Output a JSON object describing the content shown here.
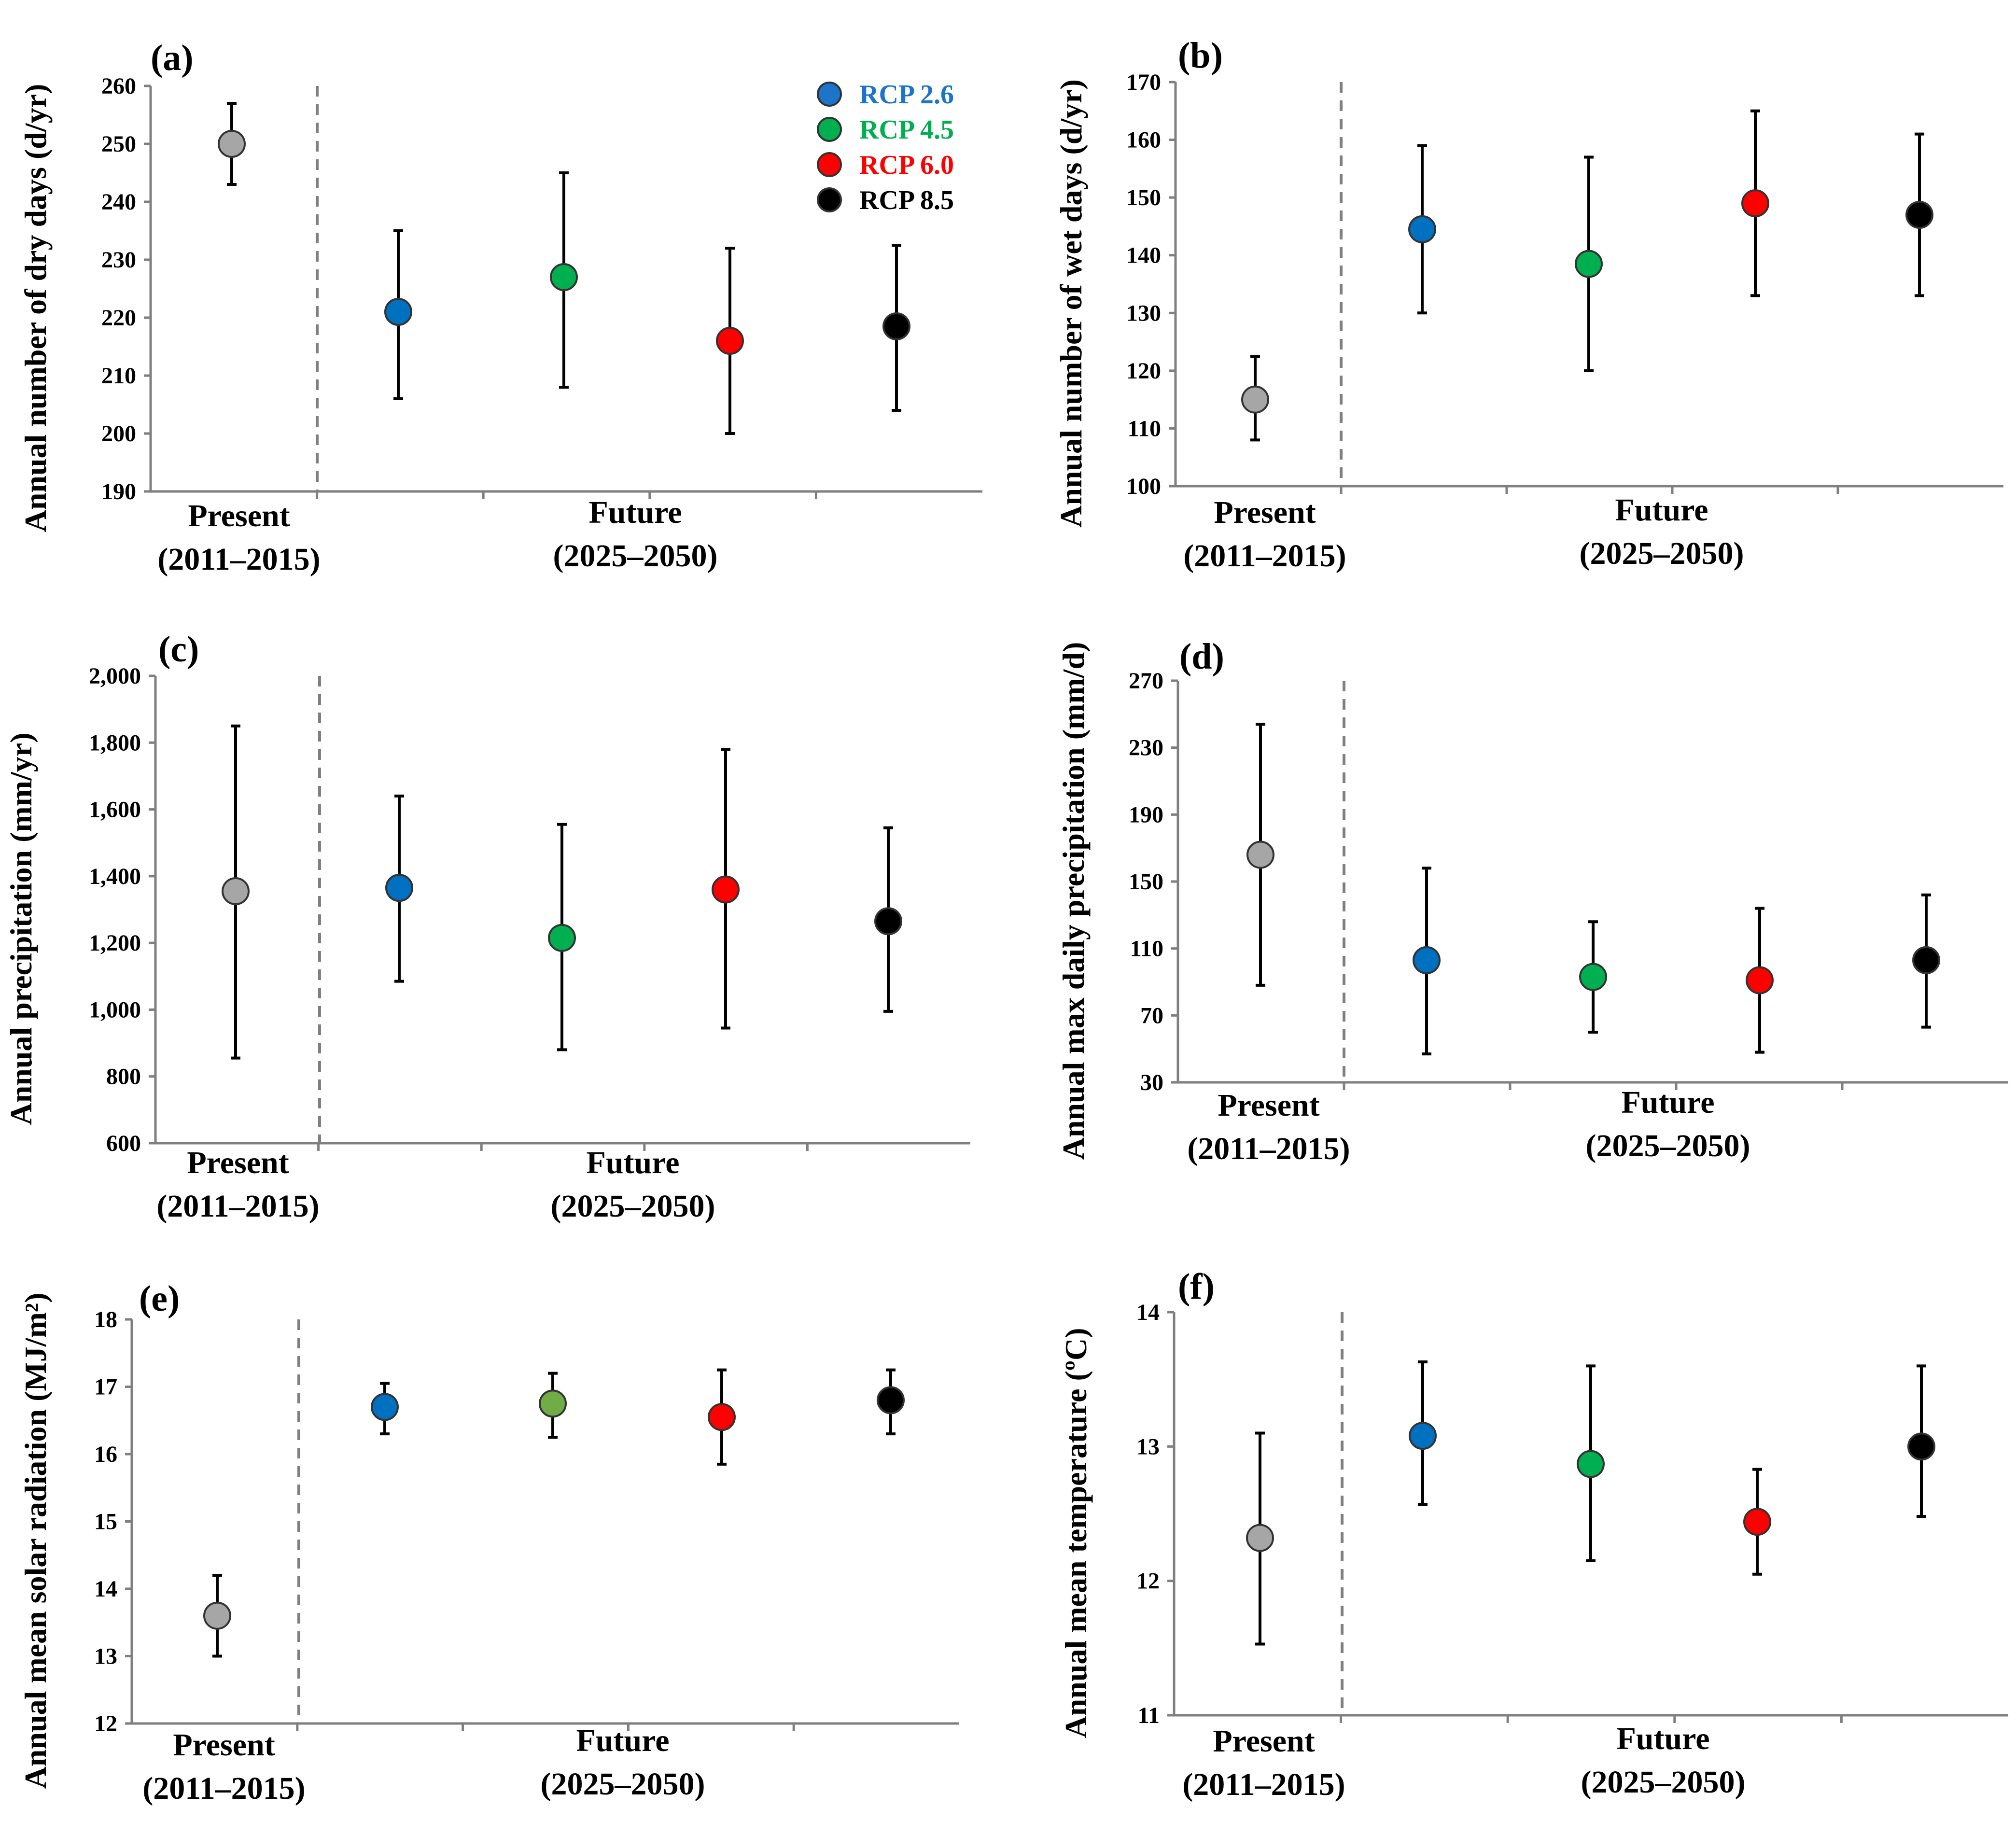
{
  "colors": {
    "present": "#a6a6a6",
    "rcp26": "#0070c0",
    "rcp45": "#00b050",
    "rcp45_alt": "#70ad47",
    "rcp60": "#ff0000",
    "rcp85": "#000000"
  },
  "legend": [
    {
      "label": "RCP 2.6",
      "color": "#1c75c9"
    },
    {
      "label": "RCP 4.5",
      "color": "#00b050"
    },
    {
      "label": "RCP 6.0",
      "color": "#ff0000"
    },
    {
      "label": "RCP 8.5",
      "color": "#000000"
    }
  ],
  "chart_data": [
    {
      "id": "a",
      "type": "scatter",
      "panel_label": "(a)",
      "ylabel": "Annual number of  dry days (d/yr)",
      "ylim": [
        190,
        260
      ],
      "yticks": [
        "190",
        "200",
        "210",
        "220",
        "230",
        "240",
        "250",
        "260"
      ],
      "categories": [
        {
          "line1": "Present",
          "line2": "(2011–2015)"
        },
        {
          "line1": "Future",
          "line2": "(2025–2050)"
        }
      ],
      "series": [
        {
          "name": "Present",
          "color": "#a6a6a6",
          "value": 250,
          "low": 243,
          "high": 257
        },
        {
          "name": "RCP 2.6",
          "color": "#0070c0",
          "value": 221,
          "low": 206,
          "high": 235
        },
        {
          "name": "RCP 4.5",
          "color": "#00b050",
          "value": 227,
          "low": 208,
          "high": 245
        },
        {
          "name": "RCP 6.0",
          "color": "#ff0000",
          "value": 216,
          "low": 200,
          "high": 232
        },
        {
          "name": "RCP 8.5",
          "color": "#000000",
          "value": 218.5,
          "low": 204,
          "high": 232.5
        }
      ]
    },
    {
      "id": "b",
      "type": "scatter",
      "panel_label": "(b)",
      "ylabel": "Annual number of  wet days (d/yr)",
      "ylim": [
        100,
        170
      ],
      "yticks": [
        "100",
        "110",
        "120",
        "130",
        "140",
        "150",
        "160",
        "170"
      ],
      "categories": [
        {
          "line1": "Present",
          "line2": "(2011–2015)"
        },
        {
          "line1": "Future",
          "line2": "(2025–2050)"
        }
      ],
      "series": [
        {
          "name": "Present",
          "color": "#a6a6a6",
          "value": 115,
          "low": 108,
          "high": 122.5
        },
        {
          "name": "RCP 2.6",
          "color": "#0070c0",
          "value": 144.5,
          "low": 130,
          "high": 159
        },
        {
          "name": "RCP 4.5",
          "color": "#00b050",
          "value": 138.5,
          "low": 120,
          "high": 157
        },
        {
          "name": "RCP 6.0",
          "color": "#ff0000",
          "value": 149,
          "low": 133,
          "high": 165
        },
        {
          "name": "RCP 8.5",
          "color": "#000000",
          "value": 147,
          "low": 133,
          "high": 161
        }
      ]
    },
    {
      "id": "c",
      "type": "scatter",
      "panel_label": "(c)",
      "ylabel": "Annual precipitation  (mm/yr)",
      "ylim": [
        600,
        2000
      ],
      "yticks": [
        "600",
        "800",
        "1,000",
        "1,200",
        "1,400",
        "1,600",
        "1,800",
        "2,000"
      ],
      "categories": [
        {
          "line1": "Present",
          "line2": "(2011–2015)"
        },
        {
          "line1": "Future",
          "line2": "(2025–2050)"
        }
      ],
      "series": [
        {
          "name": "Present",
          "color": "#a6a6a6",
          "value": 1355,
          "low": 855,
          "high": 1850
        },
        {
          "name": "RCP 2.6",
          "color": "#0070c0",
          "value": 1365,
          "low": 1085,
          "high": 1640
        },
        {
          "name": "RCP 4.5",
          "color": "#00b050",
          "value": 1215,
          "low": 880,
          "high": 1555
        },
        {
          "name": "RCP 6.0",
          "color": "#ff0000",
          "value": 1360,
          "low": 945,
          "high": 1780
        },
        {
          "name": "RCP 8.5",
          "color": "#000000",
          "value": 1265,
          "low": 995,
          "high": 1545
        }
      ]
    },
    {
      "id": "d",
      "type": "scatter",
      "panel_label": "(d)",
      "ylabel": "Annual max daily precipitation (mm/d)",
      "ylim": [
        30,
        270
      ],
      "yticks": [
        "30",
        "70",
        "110",
        "150",
        "190",
        "230",
        "270"
      ],
      "categories": [
        {
          "line1": "Present",
          "line2": "(2011–2015)"
        },
        {
          "line1": "Future",
          "line2": "(2025–2050)"
        }
      ],
      "series": [
        {
          "name": "Present",
          "color": "#a6a6a6",
          "value": 166,
          "low": 88,
          "high": 244
        },
        {
          "name": "RCP 2.6",
          "color": "#0070c0",
          "value": 103,
          "low": 47,
          "high": 158
        },
        {
          "name": "RCP 4.5",
          "color": "#00b050",
          "value": 93,
          "low": 60,
          "high": 126
        },
        {
          "name": "RCP 6.0",
          "color": "#ff0000",
          "value": 91,
          "low": 48,
          "high": 134
        },
        {
          "name": "RCP 8.5",
          "color": "#000000",
          "value": 103,
          "low": 63,
          "high": 142
        }
      ]
    },
    {
      "id": "e",
      "type": "scatter",
      "panel_label": "(e)",
      "ylabel": "Annual mean solar radiation (MJ/m²)",
      "ylim": [
        12,
        18
      ],
      "yticks": [
        "12",
        "13",
        "14",
        "15",
        "16",
        "17",
        "18"
      ],
      "categories": [
        {
          "line1": "Present",
          "line2": "(2011–2015)"
        },
        {
          "line1": "Future",
          "line2": "(2025–2050)"
        }
      ],
      "series": [
        {
          "name": "Present",
          "color": "#a6a6a6",
          "value": 13.6,
          "low": 13.0,
          "high": 14.2
        },
        {
          "name": "RCP 2.6",
          "color": "#0070c0",
          "value": 16.7,
          "low": 16.3,
          "high": 17.05
        },
        {
          "name": "RCP 4.5",
          "color": "#70ad47",
          "value": 16.75,
          "low": 16.25,
          "high": 17.2
        },
        {
          "name": "RCP 6.0",
          "color": "#ff0000",
          "value": 16.55,
          "low": 15.85,
          "high": 17.25
        },
        {
          "name": "RCP 8.5",
          "color": "#000000",
          "value": 16.8,
          "low": 16.3,
          "high": 17.25
        }
      ]
    },
    {
      "id": "f",
      "type": "scatter",
      "panel_label": "(f)",
      "ylabel": "Annual mean temperature (ºC)",
      "ylim": [
        11,
        14
      ],
      "yticks": [
        "11",
        "12",
        "13",
        "14"
      ],
      "categories": [
        {
          "line1": "Present",
          "line2": "(2011–2015)"
        },
        {
          "line1": "Future",
          "line2": "(2025–2050)"
        }
      ],
      "series": [
        {
          "name": "Present",
          "color": "#a6a6a6",
          "value": 12.32,
          "low": 11.53,
          "high": 13.1
        },
        {
          "name": "RCP 2.6",
          "color": "#0070c0",
          "value": 13.08,
          "low": 12.57,
          "high": 13.63
        },
        {
          "name": "RCP 4.5",
          "color": "#00b050",
          "value": 12.87,
          "low": 12.15,
          "high": 13.6
        },
        {
          "name": "RCP 6.0",
          "color": "#ff0000",
          "value": 12.44,
          "low": 12.05,
          "high": 12.83
        },
        {
          "name": "RCP 8.5",
          "color": "#000000",
          "value": 13.0,
          "low": 12.48,
          "high": 13.6
        }
      ]
    }
  ]
}
